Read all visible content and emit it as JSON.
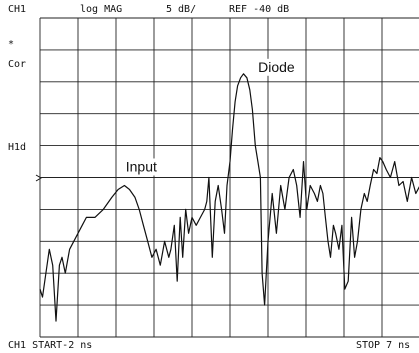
{
  "header": {
    "channel": "CH1",
    "format": "log MAG",
    "scale": "5 dB/",
    "reference": "REF -40 dB"
  },
  "side_labels": {
    "asterisk": "*",
    "correction": "Cor",
    "hold": "H1d"
  },
  "footer": {
    "start": "CH1 START-2 ns",
    "stop": "STOP 7 ns"
  },
  "colors": {
    "trace": "#111111",
    "grid": "#222222",
    "background": "#ffffff"
  },
  "chart_data": {
    "type": "line",
    "title": "",
    "xlabel": "",
    "ylabel": "",
    "grid": true,
    "xlim": [
      -2,
      7
    ],
    "ylim": [
      -80,
      -40
    ],
    "annotations": [
      {
        "label": "Input",
        "x": 0.4,
        "y": -61
      },
      {
        "label": "Diode",
        "x": 3.6,
        "y": -48
      }
    ],
    "series": [
      {
        "x": [
          -2.0,
          -1.94,
          -1.86,
          -1.78,
          -1.7,
          -1.62,
          -1.54,
          -1.48,
          -1.4,
          -1.3,
          -1.2,
          -1.1,
          -1.0,
          -0.9,
          -0.7,
          -0.5,
          -0.3,
          -0.15,
          0.0,
          0.12,
          0.25,
          0.35,
          0.45,
          0.55,
          0.65,
          0.75,
          0.85,
          0.95,
          1.05,
          1.1,
          1.18,
          1.25,
          1.32,
          1.38,
          1.45,
          1.52,
          1.6,
          1.7,
          1.8,
          1.9,
          1.95,
          2.0,
          2.08,
          2.15,
          2.22,
          2.3,
          2.37,
          2.43,
          2.5,
          2.56,
          2.62,
          2.68,
          2.75,
          2.82,
          2.9,
          2.97,
          3.03,
          3.1,
          3.16,
          3.22,
          3.26,
          3.32,
          3.4,
          3.5,
          3.6,
          3.7,
          3.8,
          3.9,
          4.0,
          4.08,
          4.16,
          4.24,
          4.32,
          4.4,
          4.5,
          4.57,
          4.64,
          4.7,
          4.76,
          4.82,
          4.88,
          4.95,
          5.0,
          5.08,
          5.15,
          5.22,
          5.3,
          5.38,
          5.45,
          5.52,
          5.6,
          5.68,
          5.75,
          5.82,
          5.9,
          5.98,
          6.05,
          6.12,
          6.2,
          6.3,
          6.4,
          6.5,
          6.6,
          6.7,
          6.8,
          6.9,
          7.0
        ],
        "y": [
          -74,
          -75,
          -72,
          -69,
          -71,
          -78,
          -71,
          -70,
          -72,
          -69,
          -68,
          -67,
          -66,
          -65,
          -65,
          -64,
          -62.5,
          -61.5,
          -61,
          -61.5,
          -62.5,
          -64,
          -66,
          -68,
          -70,
          -69,
          -71,
          -68,
          -70,
          -69,
          -66,
          -73,
          -65,
          -70,
          -64,
          -67,
          -65,
          -66,
          -65,
          -64,
          -63,
          -60,
          -70,
          -63,
          -61,
          -64,
          -67,
          -61,
          -58,
          -54,
          -50.5,
          -48.5,
          -47.5,
          -47,
          -47.5,
          -49,
          -51.5,
          -56,
          -58,
          -60,
          -72,
          -76,
          -68,
          -62,
          -67,
          -61,
          -64,
          -60,
          -59,
          -61,
          -65,
          -58,
          -64,
          -61,
          -62,
          -63,
          -61,
          -62,
          -65,
          -68,
          -70,
          -66,
          -67,
          -69,
          -66,
          -74,
          -73,
          -65,
          -70,
          -68,
          -64,
          -62,
          -63,
          -61,
          -59,
          -59.5,
          -57.5,
          -58,
          -59,
          -60,
          -58,
          -61,
          -60.5,
          -63,
          -60,
          -62,
          -61
        ]
      }
    ]
  }
}
